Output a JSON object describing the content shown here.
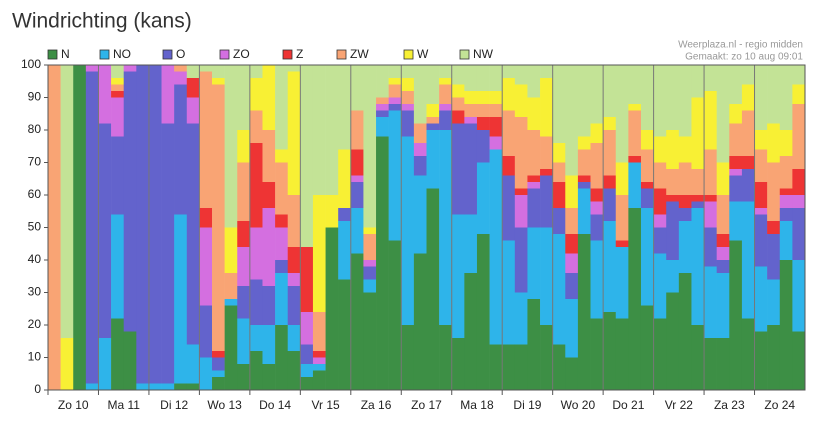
{
  "chart_data": {
    "type": "stacked_bar",
    "title": "Windrichting (kans)",
    "source": [
      "Weerplaza.nl - regio midden",
      "Gemaakt: zo 10 aug 09:01"
    ],
    "categories": [
      null,
      "Zo 10",
      null,
      null,
      null,
      "Ma 11",
      null,
      null,
      null,
      "Di 12",
      null,
      null,
      null,
      "Wo 13",
      null,
      null,
      null,
      "Do 14",
      null,
      null,
      null,
      "Vr 15",
      null,
      null,
      null,
      "Za 16",
      null,
      null,
      null,
      "Zo 17",
      null,
      null,
      null,
      "Ma 18",
      null,
      null,
      null,
      "Di 19",
      null,
      null,
      null,
      "Wo 20",
      null,
      null,
      null,
      "Do 21",
      null,
      null,
      null,
      "Vr 22",
      null,
      null,
      null,
      "Za 23",
      null,
      null,
      null,
      "Zo 24",
      null,
      null
    ],
    "series": [
      {
        "name": "N",
        "color": "#3d8f45",
        "values": [
          0,
          0,
          100,
          0,
          0,
          22,
          18,
          0,
          0,
          0,
          2,
          2,
          0,
          4,
          26,
          8,
          12,
          8,
          20,
          12,
          4,
          6,
          50,
          34,
          42,
          30,
          78,
          46,
          20,
          42,
          62,
          20,
          16,
          36,
          48,
          14,
          14,
          14,
          28,
          20,
          14,
          10,
          48,
          22,
          24,
          22,
          56,
          26,
          22,
          30,
          36,
          20,
          16,
          16,
          46,
          22,
          18,
          20,
          40,
          18
        ]
      },
      {
        "name": "NO",
        "color": "#2eb4ea",
        "values": [
          0,
          0,
          0,
          2,
          16,
          32,
          0,
          2,
          2,
          2,
          52,
          12,
          10,
          2,
          2,
          14,
          8,
          12,
          16,
          8,
          4,
          2,
          0,
          18,
          14,
          4,
          6,
          40,
          58,
          24,
          18,
          60,
          38,
          18,
          22,
          60,
          32,
          16,
          22,
          30,
          34,
          18,
          14,
          24,
          28,
          22,
          14,
          30,
          20,
          10,
          16,
          36,
          22,
          20,
          12,
          36,
          20,
          14,
          12,
          22
        ]
      },
      {
        "name": "O",
        "color": "#6363cc",
        "values": [
          0,
          0,
          0,
          96,
          66,
          24,
          80,
          98,
          98,
          80,
          40,
          68,
          16,
          4,
          0,
          10,
          14,
          12,
          4,
          12,
          6,
          0,
          0,
          4,
          8,
          4,
          2,
          2,
          8,
          6,
          2,
          6,
          28,
          28,
          10,
          0,
          20,
          20,
          12,
          16,
          8,
          8,
          2,
          8,
          10,
          0,
          0,
          6,
          8,
          18,
          4,
          2,
          12,
          4,
          8,
          10,
          16,
          14,
          4,
          16
        ]
      },
      {
        "name": "ZO",
        "color": "#d46fe0",
        "values": [
          0,
          0,
          0,
          2,
          18,
          12,
          2,
          0,
          0,
          18,
          4,
          8,
          24,
          0,
          0,
          12,
          16,
          24,
          10,
          4,
          10,
          2,
          0,
          0,
          2,
          2,
          2,
          2,
          2,
          4,
          0,
          2,
          0,
          2,
          0,
          4,
          0,
          10,
          2,
          0,
          0,
          6,
          0,
          4,
          0,
          0,
          0,
          0,
          4,
          0,
          0,
          0,
          8,
          4,
          2,
          0,
          2,
          0,
          4,
          4
        ]
      },
      {
        "name": "Z",
        "color": "#ee3434",
        "values": [
          0,
          0,
          0,
          0,
          0,
          2,
          0,
          0,
          0,
          0,
          0,
          6,
          6,
          2,
          0,
          8,
          26,
          8,
          4,
          8,
          20,
          2,
          0,
          0,
          8,
          0,
          0,
          0,
          0,
          0,
          0,
          0,
          4,
          0,
          4,
          6,
          6,
          2,
          2,
          2,
          8,
          6,
          2,
          4,
          4,
          2,
          2,
          2,
          8,
          2,
          4,
          2,
          2,
          4,
          4,
          4,
          8,
          4,
          2,
          8
        ]
      },
      {
        "name": "ZW",
        "color": "#f9a474",
        "values": [
          100,
          0,
          0,
          0,
          0,
          2,
          0,
          0,
          0,
          0,
          2,
          0,
          42,
          82,
          8,
          18,
          10,
          16,
          16,
          16,
          0,
          12,
          0,
          0,
          12,
          8,
          2,
          4,
          4,
          6,
          2,
          6,
          4,
          4,
          4,
          4,
          14,
          22,
          14,
          10,
          6,
          8,
          8,
          14,
          14,
          14,
          14,
          10,
          8,
          8,
          10,
          8,
          14,
          12,
          10,
          14,
          10,
          18,
          10,
          20
        ]
      },
      {
        "name": "W",
        "color": "#f8f034",
        "values": [
          0,
          16,
          0,
          0,
          0,
          2,
          0,
          0,
          0,
          0,
          0,
          0,
          0,
          2,
          14,
          10,
          10,
          20,
          4,
          38,
          0,
          36,
          10,
          18,
          0,
          2,
          0,
          2,
          4,
          0,
          4,
          2,
          4,
          4,
          4,
          4,
          10,
          10,
          10,
          18,
          6,
          10,
          4,
          6,
          4,
          10,
          2,
          6,
          8,
          12,
          8,
          22,
          18,
          10,
          6,
          8,
          6,
          12,
          8,
          6
        ]
      },
      {
        "name": "NW",
        "color": "#c3e396",
        "values": [
          0,
          84,
          0,
          0,
          0,
          4,
          0,
          0,
          0,
          0,
          0,
          4,
          2,
          4,
          50,
          20,
          4,
          0,
          26,
          2,
          56,
          40,
          40,
          26,
          14,
          50,
          10,
          4,
          4,
          18,
          12,
          4,
          6,
          8,
          8,
          8,
          4,
          6,
          10,
          4,
          24,
          34,
          22,
          18,
          16,
          30,
          12,
          20,
          22,
          20,
          22,
          10,
          8,
          30,
          12,
          6,
          20,
          18,
          20,
          6
        ]
      }
    ],
    "ylim": [
      0,
      100
    ],
    "yticks": [
      0,
      10,
      20,
      30,
      40,
      50,
      60,
      70,
      80,
      90,
      100
    ],
    "grid": false
  }
}
